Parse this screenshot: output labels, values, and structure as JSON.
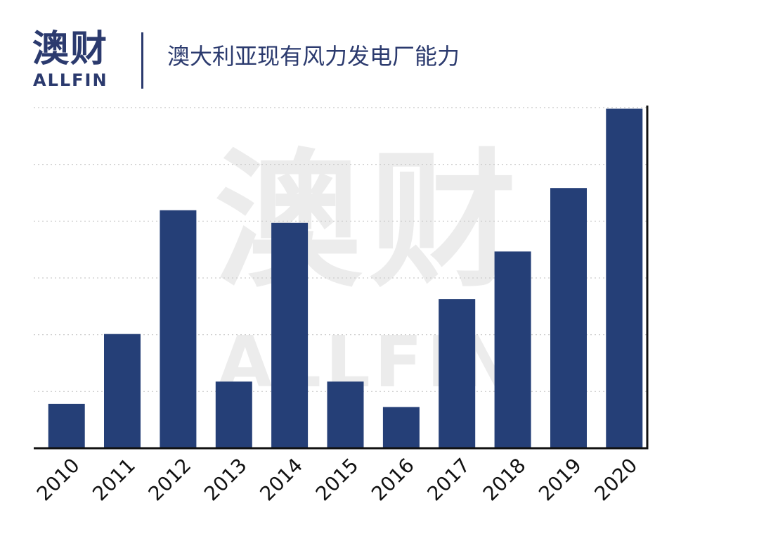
{
  "header": {
    "logo_cn": "澳财",
    "logo_en": "ALLFIN",
    "title": "澳大利亚现有风力发电厂能力"
  },
  "watermark": {
    "cn": "澳财",
    "en": "ALLFIN"
  },
  "colors": {
    "bar": "#253f77",
    "brand": "#2b3a6e",
    "grid": "#cccccc",
    "axis": "#111111"
  },
  "chart_data": {
    "type": "bar",
    "title": "澳大利亚现有风力发电厂能力",
    "xlabel": "",
    "ylabel": "",
    "categories": [
      "2010",
      "2011",
      "2012",
      "2013",
      "2014",
      "2015",
      "2016",
      "2017",
      "2018",
      "2019",
      "2020"
    ],
    "values": [
      14,
      36,
      75,
      21,
      71,
      21,
      13,
      47,
      62,
      82,
      107
    ],
    "ylim": [
      0,
      108
    ],
    "grid": true,
    "legend": "none",
    "axis_side": "right"
  }
}
